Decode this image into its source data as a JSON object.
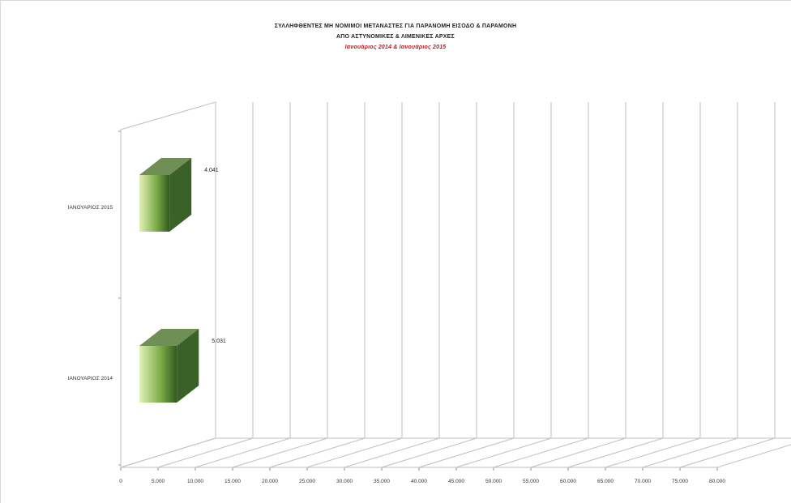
{
  "chart_data": {
    "type": "bar",
    "orientation": "horizontal",
    "three_d": true,
    "title": "ΣΥΛΛΗΦΘΕΝΤΕΣ  ΜΗ ΝΟΜΙΜΟΙ ΜΕΤΑΝΑΣΤΕΣ ΓΙΑ ΠΑΡΑΝΟΜΗ ΕΙΣΟΔΟ & ΠΑΡΑΜΟΝΗ",
    "subtitle": "ΑΠΟ ΑΣΤΥΝΟΜΙΚΕΣ & ΛΙΜΕΝΙΚΕΣ ΑΡΧΕΣ",
    "subtitle2": "Ιανουάριος 2014 &  Ιανουάριος 2015",
    "categories": [
      "ΙΑΝΟΥΑΡΙΟΣ 2014",
      "ΙΑΝΟΥΑΡΙΟΣ 2015"
    ],
    "values": [
      5031,
      4041
    ],
    "value_labels": [
      "5.031",
      "4.041"
    ],
    "xlim": [
      0,
      80000
    ],
    "x_ticks": [
      "0",
      "5.000",
      "10.000",
      "15.000",
      "20.000",
      "25.000",
      "30.000",
      "35.000",
      "40.000",
      "45.000",
      "50.000",
      "55.000",
      "60.000",
      "65.000",
      "70.000",
      "75.000",
      "80.000"
    ],
    "grid": true,
    "legend": "none",
    "colors": {
      "bar_light": "#e2f0b8",
      "bar_mid": "#7fae4a",
      "bar_dark": "#2f5a1c",
      "bar_top": "#6f8f55",
      "bar_side": "#3a6128",
      "grid": "#bfbfbf"
    }
  }
}
